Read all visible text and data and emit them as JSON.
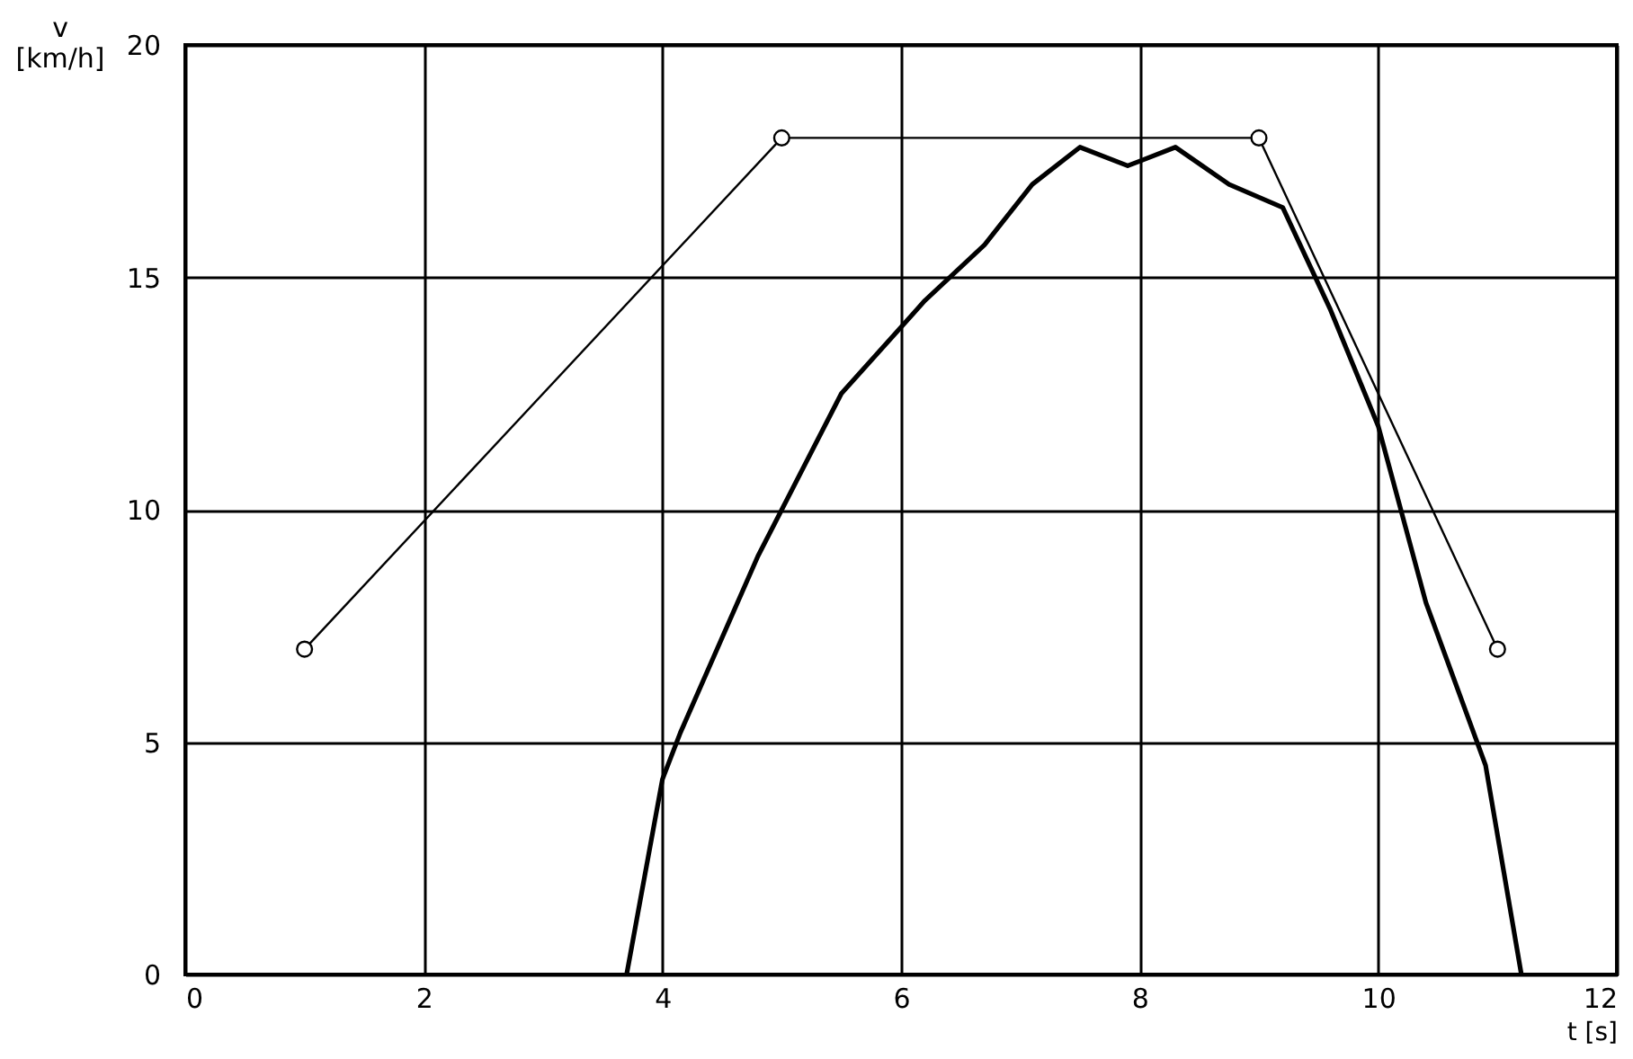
{
  "chart_data": {
    "type": "line",
    "xlabel": "t [s]",
    "ylabel": "v\n[km/h]",
    "xlim": [
      0,
      12
    ],
    "xticks": [
      0,
      2,
      4,
      6,
      8,
      10,
      12
    ],
    "ylim": [
      0,
      20
    ],
    "yticks": [
      0,
      5,
      10,
      15,
      20
    ],
    "grid": true,
    "series": [
      {
        "color": "#000000",
        "marker": "circle",
        "x": [
          1,
          5,
          9,
          11
        ],
        "values": [
          7,
          18,
          18,
          7
        ]
      },
      {
        "color": "#000000",
        "marker": "none",
        "x": [
          3.7,
          4.0,
          4.15,
          4.8,
          5.5,
          6.2,
          6.7,
          7.1,
          7.5,
          7.9,
          8.3,
          8.75,
          9.2,
          9.6,
          10.0,
          10.4,
          10.9,
          11.2
        ],
        "values": [
          0,
          4.2,
          5.2,
          9.0,
          12.5,
          14.5,
          15.7,
          17.0,
          17.8,
          17.4,
          17.8,
          17.0,
          16.5,
          14.3,
          11.8,
          8.0,
          4.5,
          0
        ]
      }
    ]
  }
}
